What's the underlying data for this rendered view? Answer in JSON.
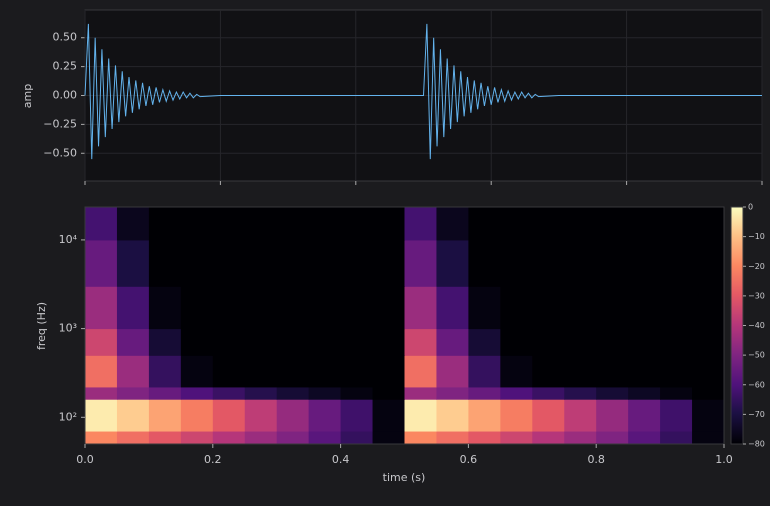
{
  "chart_data": [
    {
      "type": "line",
      "ylabel": "amp",
      "color": "#63b3ed",
      "grid": true,
      "xlim": [
        0,
        1
      ],
      "xticks": [
        0,
        0.2,
        0.4,
        0.6,
        0.8,
        1.0
      ],
      "ylim": [
        -0.74,
        0.74
      ],
      "yticks": [
        {
          "value": -0.5,
          "label": "−0.50"
        },
        {
          "value": -0.25,
          "label": "−0.25"
        },
        {
          "value": 0,
          "label": "0.00"
        },
        {
          "value": 0.25,
          "label": "0.25"
        },
        {
          "value": 0.5,
          "label": "0.50"
        }
      ],
      "x": [
        0,
        0.005,
        0.01,
        0.015,
        0.02,
        0.025,
        0.03,
        0.035,
        0.04,
        0.045,
        0.05,
        0.055,
        0.06,
        0.065,
        0.07,
        0.075,
        0.08,
        0.085,
        0.09,
        0.095,
        0.1,
        0.105,
        0.11,
        0.115,
        0.12,
        0.125,
        0.13,
        0.135,
        0.14,
        0.145,
        0.15,
        0.155,
        0.16,
        0.165,
        0.17,
        0.2,
        0.5,
        0.505,
        0.51,
        0.515,
        0.52,
        0.525,
        0.53,
        0.535,
        0.54,
        0.545,
        0.55,
        0.555,
        0.56,
        0.565,
        0.57,
        0.575,
        0.58,
        0.585,
        0.59,
        0.595,
        0.6,
        0.605,
        0.61,
        0.615,
        0.62,
        0.625,
        0.63,
        0.635,
        0.64,
        0.645,
        0.65,
        0.655,
        0.66,
        0.665,
        0.67,
        0.7,
        1.0
      ],
      "values": [
        0,
        0.62,
        -0.55,
        0.5,
        -0.44,
        0.4,
        -0.36,
        0.32,
        -0.29,
        0.26,
        -0.23,
        0.21,
        -0.18,
        0.16,
        -0.15,
        0.13,
        -0.12,
        0.11,
        -0.09,
        0.08,
        -0.08,
        0.07,
        -0.06,
        0.05,
        -0.05,
        0.04,
        -0.04,
        0.03,
        -0.03,
        0.03,
        -0.02,
        0.02,
        -0.02,
        0.01,
        -0.01,
        0,
        0,
        0.62,
        -0.55,
        0.5,
        -0.44,
        0.4,
        -0.36,
        0.32,
        -0.29,
        0.26,
        -0.23,
        0.21,
        -0.18,
        0.16,
        -0.15,
        0.13,
        -0.12,
        0.11,
        -0.09,
        0.08,
        -0.08,
        0.07,
        -0.06,
        0.05,
        -0.05,
        0.04,
        -0.04,
        0.03,
        -0.03,
        0.03,
        -0.02,
        0.02,
        -0.02,
        0.01,
        -0.01,
        0,
        0
      ]
    },
    {
      "type": "heatmap",
      "xlabel": "time (s)",
      "ylabel": "freq (Hz)",
      "yscale": "log",
      "cmap": "magma",
      "xlim": [
        0,
        1
      ],
      "xticks": [
        {
          "value": 0,
          "label": "0.0"
        },
        0.2,
        0.4,
        0.6,
        0.8,
        {
          "value": 1,
          "label": "1.0"
        }
      ],
      "ylim": [
        50,
        23500
      ],
      "yticks": [
        {
          "value": 100,
          "label": "10²"
        },
        {
          "value": 1000,
          "label": "10³"
        },
        {
          "value": 10000,
          "label": "10⁴"
        }
      ],
      "zlim": [
        -80,
        0
      ],
      "zticks": [
        0,
        {
          "value": -10,
          "label": "−10"
        },
        {
          "value": -20,
          "label": "−20"
        },
        {
          "value": -30,
          "label": "−30"
        },
        {
          "value": -40,
          "label": "−40"
        },
        {
          "value": -50,
          "label": "−50"
        },
        {
          "value": -60,
          "label": "−60"
        },
        {
          "value": -70,
          "label": "−70"
        },
        {
          "value": -80,
          "label": "−80"
        }
      ],
      "xbins": [
        0,
        0.05,
        0.1,
        0.15,
        0.2,
        0.25,
        0.3,
        0.35,
        0.4,
        0.45,
        0.5,
        0.55,
        0.6,
        0.65,
        0.7,
        0.75,
        0.8,
        0.85,
        0.9,
        0.95,
        1
      ],
      "ybins": [
        50,
        70,
        160,
        220,
        500,
        1000,
        3000,
        10000,
        23500
      ],
      "values": [
        [
          -20,
          -25,
          -30,
          -35,
          -40,
          -45,
          -50,
          -58,
          -65,
          -78,
          -20,
          -25,
          -30,
          -35,
          -40,
          -45,
          -50,
          -58,
          -65,
          -78
        ],
        [
          -3,
          -8,
          -15,
          -22,
          -30,
          -38,
          -46,
          -55,
          -63,
          -78,
          -3,
          -8,
          -15,
          -22,
          -30,
          -38,
          -46,
          -55,
          -63,
          -78
        ],
        [
          -45,
          -50,
          -55,
          -60,
          -64,
          -68,
          -72,
          -75,
          -78,
          -80,
          -45,
          -50,
          -55,
          -60,
          -64,
          -68,
          -72,
          -75,
          -78,
          -80
        ],
        [
          -25,
          -45,
          -65,
          -78,
          -80,
          -80,
          -80,
          -80,
          -80,
          -80,
          -25,
          -45,
          -65,
          -78,
          -80,
          -80,
          -80,
          -80,
          -80,
          -80
        ],
        [
          -35,
          -55,
          -72,
          -80,
          -80,
          -80,
          -80,
          -80,
          -80,
          -80,
          -35,
          -55,
          -72,
          -80,
          -80,
          -80,
          -80,
          -80,
          -80,
          -80
        ],
        [
          -45,
          -62,
          -78,
          -80,
          -80,
          -80,
          -80,
          -80,
          -80,
          -80,
          -45,
          -62,
          -78,
          -80,
          -80,
          -80,
          -80,
          -80,
          -80,
          -80
        ],
        [
          -55,
          -70,
          -80,
          -80,
          -80,
          -80,
          -80,
          -80,
          -80,
          -80,
          -55,
          -70,
          -80,
          -80,
          -80,
          -80,
          -80,
          -80,
          -80,
          -80
        ],
        [
          -62,
          -76,
          -80,
          -80,
          -80,
          -80,
          -80,
          -80,
          -80,
          -80,
          -62,
          -76,
          -80,
          -80,
          -80,
          -80,
          -80,
          -80,
          -80,
          -80
        ]
      ]
    }
  ]
}
